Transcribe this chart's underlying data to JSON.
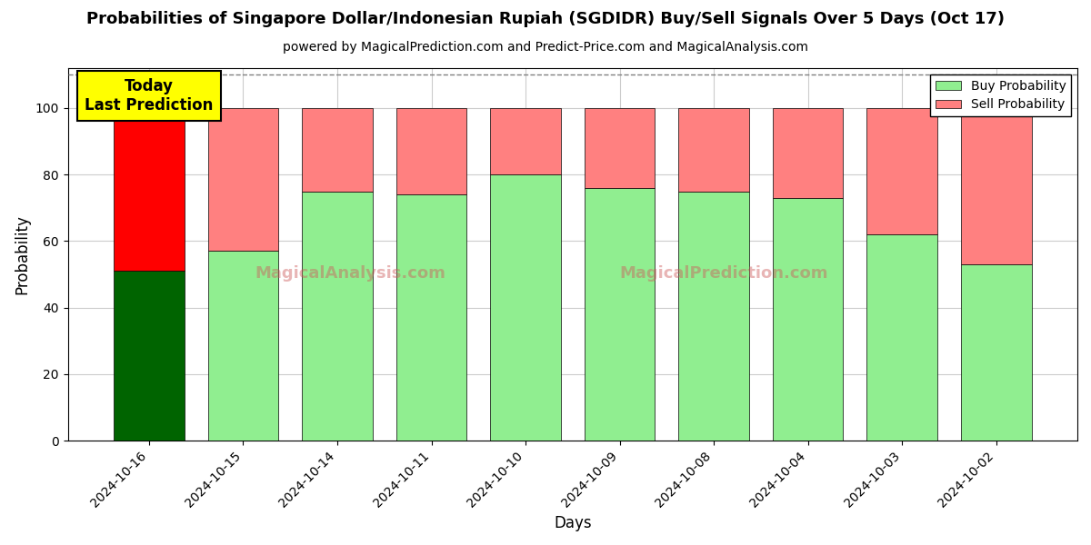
{
  "title": "Probabilities of Singapore Dollar/Indonesian Rupiah (SGDIDR) Buy/Sell Signals Over 5 Days (Oct 17)",
  "subtitle": "powered by MagicalPrediction.com and Predict-Price.com and MagicalAnalysis.com",
  "xlabel": "Days",
  "ylabel": "Probability",
  "categories": [
    "2024-10-16",
    "2024-10-15",
    "2024-10-14",
    "2024-10-11",
    "2024-10-10",
    "2024-10-09",
    "2024-10-08",
    "2024-10-04",
    "2024-10-03",
    "2024-10-02"
  ],
  "buy_values": [
    51,
    57,
    75,
    74,
    80,
    76,
    75,
    73,
    62,
    53
  ],
  "sell_values": [
    49,
    43,
    25,
    26,
    20,
    24,
    25,
    27,
    38,
    47
  ],
  "buy_colors": [
    "#006400",
    "#90EE90",
    "#90EE90",
    "#90EE90",
    "#90EE90",
    "#90EE90",
    "#90EE90",
    "#90EE90",
    "#90EE90",
    "#90EE90"
  ],
  "sell_colors": [
    "#FF0000",
    "#FF8080",
    "#FF8080",
    "#FF8080",
    "#FF8080",
    "#FF8080",
    "#FF8080",
    "#FF8080",
    "#FF8080",
    "#FF8080"
  ],
  "today_label": "Today\nLast Prediction",
  "ylim": [
    0,
    112
  ],
  "yticks": [
    0,
    20,
    40,
    60,
    80,
    100
  ],
  "dashed_line_y": 110,
  "watermark_left": "MagicalAnalysis.com",
  "watermark_right": "MagicalPrediction.com",
  "legend_buy_color": "#90EE90",
  "legend_sell_color": "#FF8080",
  "bar_edge_color": "#000000",
  "background_color": "#ffffff",
  "grid_color": "#cccccc",
  "title_fontsize": 13,
  "subtitle_fontsize": 10
}
